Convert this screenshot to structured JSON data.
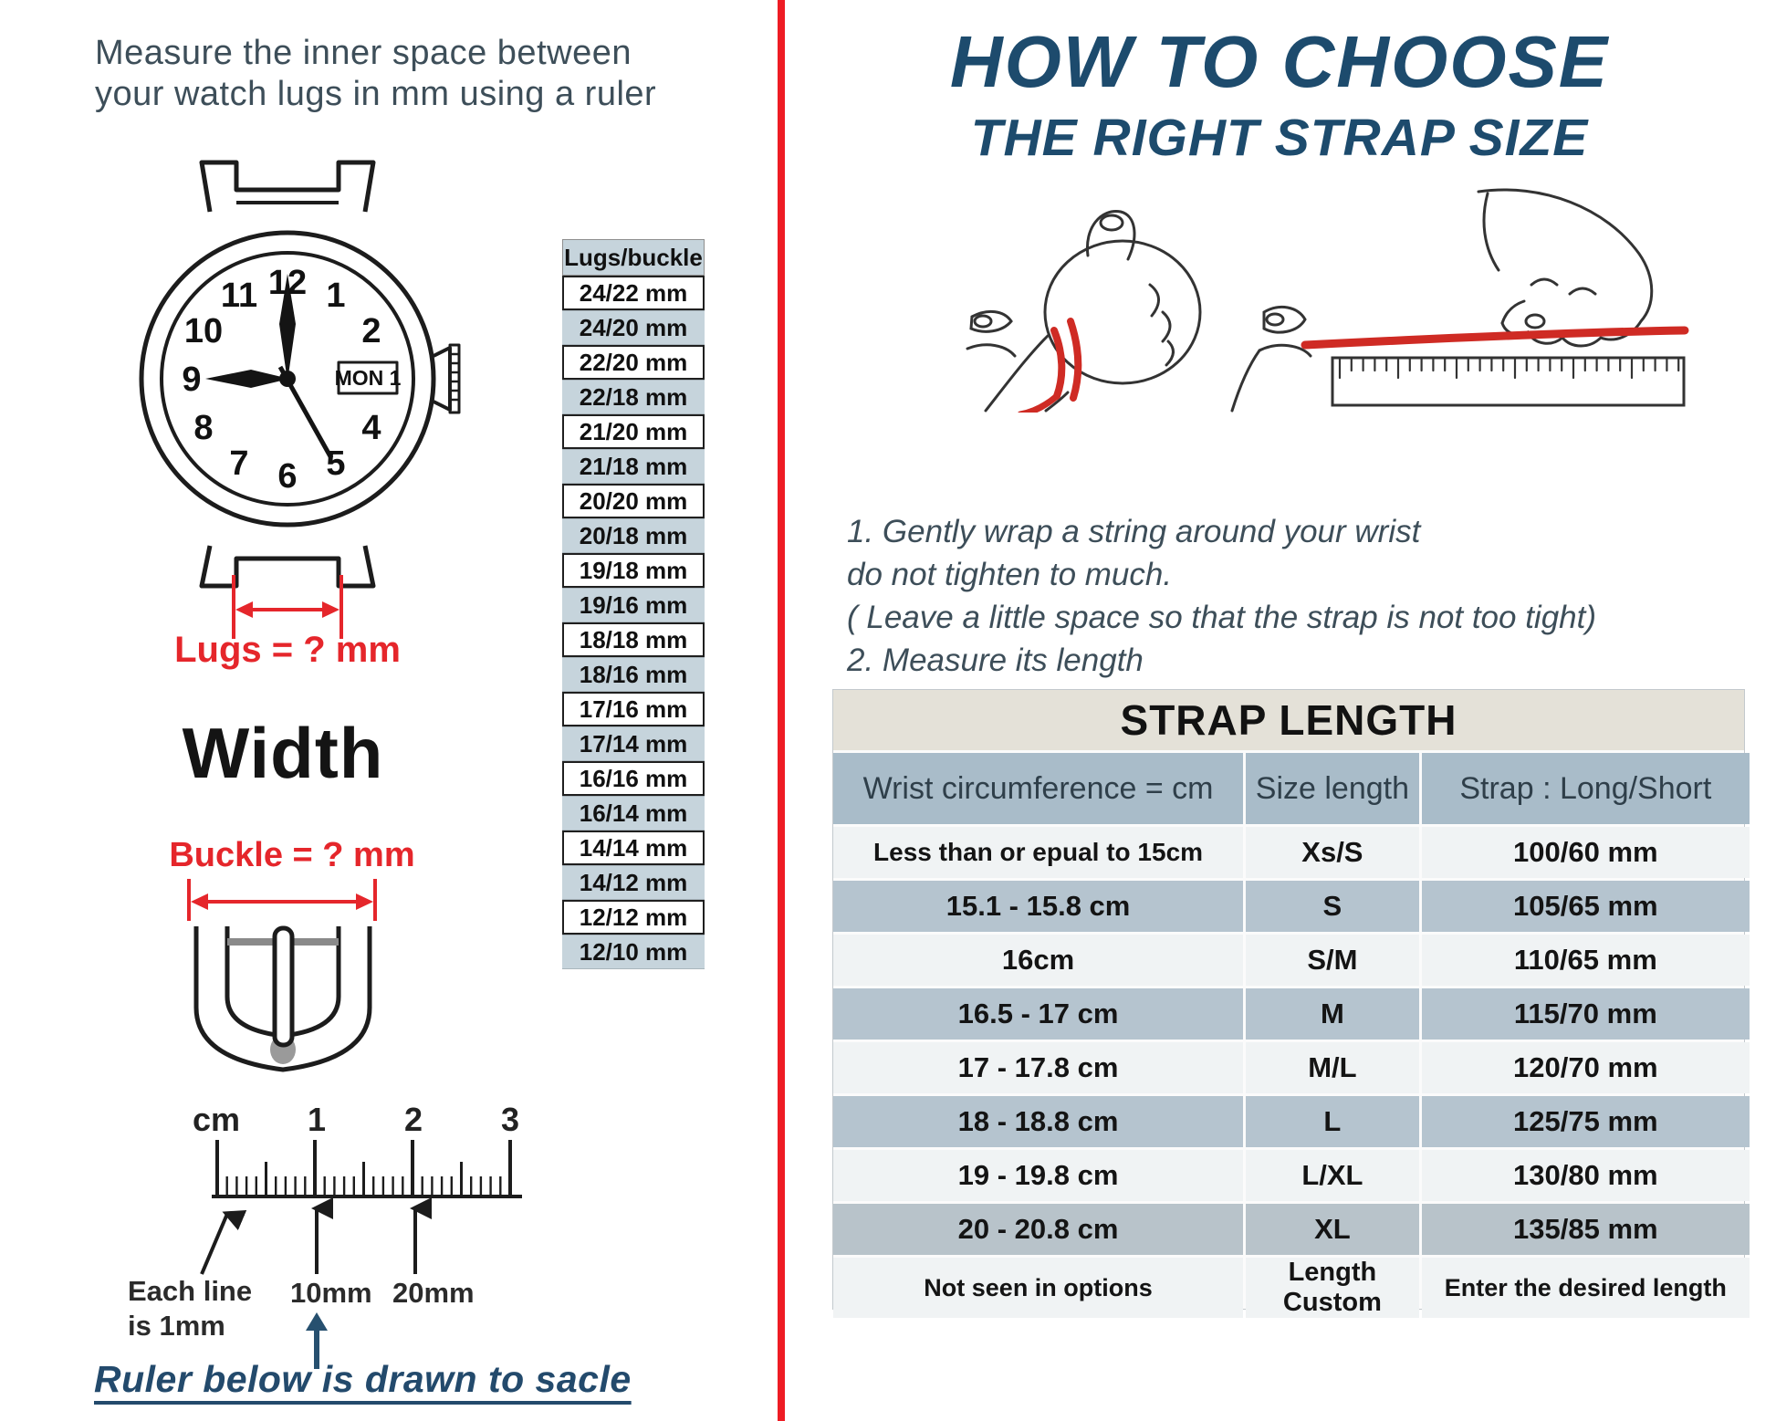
{
  "left": {
    "heading_line1": "Measure the inner space between",
    "heading_line2": "your watch lugs in mm using a ruler",
    "watch": {
      "numbers": [
        "12",
        "1",
        "2",
        "4",
        "5",
        "6",
        "7",
        "8",
        "9",
        "10",
        "11"
      ],
      "date_window": "MON 1"
    },
    "lugs_label": "Lugs = ? mm",
    "width_label": "Width",
    "buckle_label": "Buckle = ? mm",
    "sizes": {
      "header": "Lugs/buckle",
      "items": [
        "24/22 mm",
        "24/20 mm",
        "22/20 mm",
        "22/18 mm",
        "21/20 mm",
        "21/18 mm",
        "20/20 mm",
        "20/18 mm",
        "19/18 mm",
        "19/16 mm",
        "18/18 mm",
        "18/16 mm",
        "17/16 mm",
        "17/14 mm",
        "16/16 mm",
        "16/14 mm",
        "14/14 mm",
        "14/12 mm",
        "12/12 mm",
        "12/10 mm"
      ]
    },
    "ruler": {
      "unit_label": "cm",
      "mark_1": "1",
      "mark_2": "2",
      "mark_3": "3",
      "each_line_label_1": "Each line",
      "each_line_label_2": "is 1mm",
      "label_10mm": "10mm",
      "label_20mm": "20mm"
    },
    "scale_note": "Ruler below is drawn to sacle"
  },
  "right": {
    "title_line1": "HOW TO CHOOSE",
    "title_line2": "THE RIGHT STRAP SIZE",
    "instructions": [
      "1.  Gently wrap a string around your wrist",
      "do not tighten to much.",
      "( Leave a little space so that the strap is not too tight)",
      "2. Measure its length"
    ],
    "table": {
      "title": "STRAP LENGTH",
      "columns": [
        "Wrist circumference = cm",
        "Size length",
        "Strap : Long/Short"
      ],
      "rows": [
        [
          "Less than or epual to 15cm",
          "Xs/S",
          "100/60 mm"
        ],
        [
          "15.1 - 15.8 cm",
          "S",
          "105/65 mm"
        ],
        [
          "16cm",
          "S/M",
          "110/65 mm"
        ],
        [
          "16.5 - 17 cm",
          "M",
          "115/70 mm"
        ],
        [
          "17 - 17.8 cm",
          "M/L",
          "120/70 mm"
        ],
        [
          "18 - 18.8 cm",
          "L",
          "125/75 mm"
        ],
        [
          "19 - 19.8 cm",
          "L/XL",
          "130/80 mm"
        ],
        [
          "20 - 20.8 cm",
          "XL",
          "135/85 mm"
        ],
        [
          "Not seen in options",
          "Length Custom",
          "Enter the desired length"
        ]
      ]
    }
  },
  "colors": {
    "accent_red": "#e5262b",
    "divider_red": "#ee1c24",
    "title_blue": "#1d4b6d",
    "slate_text": "#3d4e59",
    "list_blue_bg": "#c6d4dc",
    "table_title_bg": "#e4e1d8",
    "table_header_bg": "#a9bcc9",
    "row_light_bg": "#f0f3f4",
    "row_blue_bg": "#b5c4cf"
  }
}
